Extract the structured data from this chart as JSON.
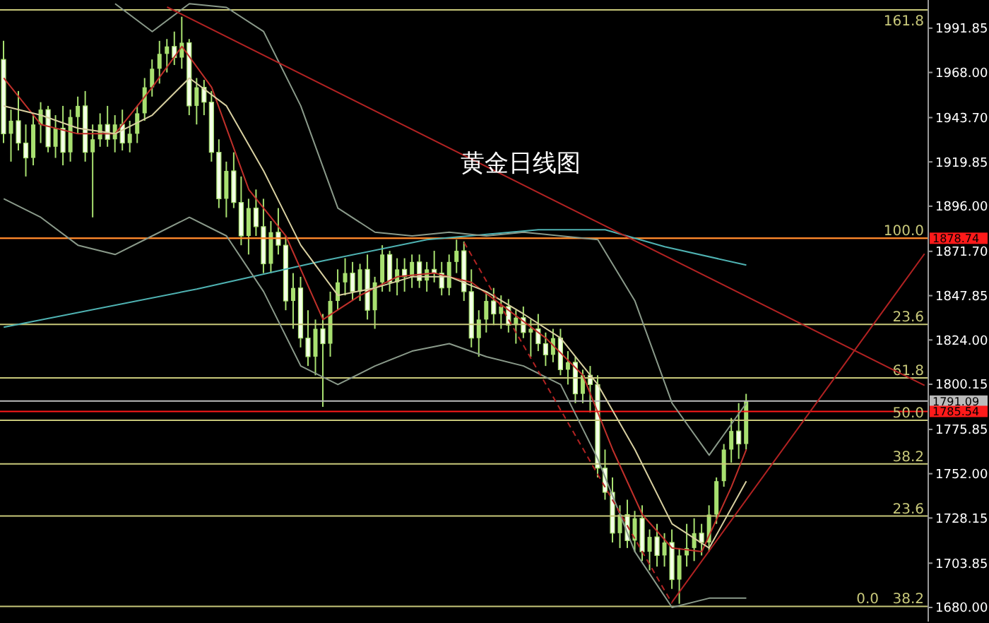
{
  "chart_data": {
    "type": "candlestick",
    "title": "黄金日线图",
    "color": "#a8e070",
    "categories": [
      null,
      null,
      null,
      null,
      null,
      null,
      null,
      null,
      null,
      null,
      null,
      null,
      null,
      null,
      null,
      null,
      null,
      null,
      null,
      null,
      null,
      null,
      null,
      null,
      null,
      null,
      null,
      null,
      null,
      null,
      null,
      null,
      null,
      null,
      null,
      null,
      null,
      null,
      null,
      null,
      null,
      null,
      null,
      null,
      null,
      null,
      null,
      null,
      null,
      null,
      null,
      null,
      null,
      null,
      null,
      null,
      null,
      null,
      null,
      null,
      null,
      null,
      null,
      null,
      null,
      null,
      null,
      null,
      null,
      null,
      null,
      null,
      null,
      null,
      null,
      null,
      null,
      null,
      null,
      null,
      null,
      null,
      null,
      null,
      null,
      null,
      null,
      null,
      null,
      null,
      null,
      null,
      null,
      null,
      null,
      null,
      null,
      null,
      null,
      null,
      null,
      null,
      null,
      null,
      null,
      null,
      null,
      null,
      null,
      null,
      null,
      null,
      null,
      null,
      null,
      null,
      null,
      null,
      null,
      null,
      null,
      null,
      null,
      null,
      null
    ],
    "ohlc": [
      [
        1975,
        1985,
        1930,
        1935
      ],
      [
        1935,
        1948,
        1920,
        1942
      ],
      [
        1942,
        1958,
        1926,
        1930
      ],
      [
        1930,
        1940,
        1912,
        1922
      ],
      [
        1922,
        1945,
        1918,
        1940
      ],
      [
        1940,
        1952,
        1930,
        1948
      ],
      [
        1948,
        1950,
        1925,
        1928
      ],
      [
        1928,
        1945,
        1922,
        1938
      ],
      [
        1938,
        1950,
        1918,
        1925
      ],
      [
        1925,
        1948,
        1920,
        1944
      ],
      [
        1944,
        1955,
        1935,
        1950
      ],
      [
        1950,
        1958,
        1920,
        1925
      ],
      [
        1925,
        1940,
        1890,
        1932
      ],
      [
        1932,
        1946,
        1928,
        1940
      ],
      [
        1940,
        1950,
        1928,
        1932
      ],
      [
        1932,
        1945,
        1925,
        1940
      ],
      [
        1940,
        1948,
        1926,
        1930
      ],
      [
        1930,
        1942,
        1925,
        1935
      ],
      [
        1935,
        1950,
        1930,
        1946
      ],
      [
        1946,
        1965,
        1942,
        1960
      ],
      [
        1960,
        1975,
        1955,
        1970
      ],
      [
        1970,
        1985,
        1962,
        1978
      ],
      [
        1978,
        1986,
        1968,
        1982
      ],
      [
        1982,
        1990,
        1972,
        1976
      ],
      [
        1976,
        1998,
        1970,
        1984
      ],
      [
        1984,
        1986,
        1945,
        1950
      ],
      [
        1950,
        1965,
        1940,
        1960
      ],
      [
        1960,
        1964,
        1945,
        1952
      ],
      [
        1952,
        1958,
        1920,
        1925
      ],
      [
        1925,
        1932,
        1895,
        1900
      ],
      [
        1900,
        1920,
        1890,
        1915
      ],
      [
        1915,
        1925,
        1895,
        1898
      ],
      [
        1898,
        1912,
        1875,
        1880
      ],
      [
        1880,
        1900,
        1870,
        1895
      ],
      [
        1895,
        1905,
        1880,
        1885
      ],
      [
        1885,
        1900,
        1860,
        1865
      ],
      [
        1865,
        1888,
        1860,
        1882
      ],
      [
        1882,
        1895,
        1870,
        1875
      ],
      [
        1875,
        1880,
        1840,
        1845
      ],
      [
        1845,
        1860,
        1830,
        1852
      ],
      [
        1852,
        1858,
        1820,
        1825
      ],
      [
        1825,
        1840,
        1810,
        1815
      ],
      [
        1815,
        1835,
        1805,
        1830
      ],
      [
        1830,
        1838,
        1788,
        1822
      ],
      [
        1822,
        1850,
        1815,
        1845
      ],
      [
        1845,
        1862,
        1840,
        1855
      ],
      [
        1855,
        1868,
        1848,
        1860
      ],
      [
        1860,
        1866,
        1845,
        1850
      ],
      [
        1850,
        1865,
        1845,
        1862
      ],
      [
        1862,
        1870,
        1835,
        1840
      ],
      [
        1840,
        1858,
        1830,
        1855
      ],
      [
        1855,
        1875,
        1850,
        1870
      ],
      [
        1870,
        1872,
        1850,
        1855
      ],
      [
        1855,
        1868,
        1848,
        1862
      ],
      [
        1862,
        1868,
        1850,
        1858
      ],
      [
        1858,
        1870,
        1852,
        1866
      ],
      [
        1866,
        1870,
        1852,
        1856
      ],
      [
        1856,
        1866,
        1850,
        1862
      ],
      [
        1862,
        1872,
        1855,
        1860
      ],
      [
        1860,
        1866,
        1848,
        1852
      ],
      [
        1852,
        1870,
        1848,
        1866
      ],
      [
        1866,
        1878,
        1860,
        1872
      ],
      [
        1872,
        1877,
        1845,
        1850
      ],
      [
        1850,
        1862,
        1820,
        1825
      ],
      [
        1825,
        1840,
        1815,
        1835
      ],
      [
        1835,
        1850,
        1828,
        1845
      ],
      [
        1845,
        1852,
        1832,
        1838
      ],
      [
        1838,
        1848,
        1830,
        1842
      ],
      [
        1842,
        1846,
        1828,
        1832
      ],
      [
        1832,
        1840,
        1822,
        1836
      ],
      [
        1836,
        1842,
        1825,
        1828
      ],
      [
        1828,
        1835,
        1815,
        1830
      ],
      [
        1830,
        1838,
        1818,
        1822
      ],
      [
        1822,
        1828,
        1810,
        1816
      ],
      [
        1816,
        1830,
        1812,
        1825
      ],
      [
        1825,
        1830,
        1805,
        1808
      ],
      [
        1808,
        1818,
        1800,
        1812
      ],
      [
        1812,
        1815,
        1790,
        1795
      ],
      [
        1795,
        1808,
        1790,
        1805
      ],
      [
        1805,
        1810,
        1785,
        1800
      ],
      [
        1800,
        1805,
        1750,
        1755
      ],
      [
        1755,
        1765,
        1738,
        1742
      ],
      [
        1742,
        1750,
        1715,
        1720
      ],
      [
        1720,
        1735,
        1712,
        1730
      ],
      [
        1730,
        1738,
        1712,
        1716
      ],
      [
        1716,
        1732,
        1710,
        1728
      ],
      [
        1728,
        1735,
        1705,
        1710
      ],
      [
        1710,
        1722,
        1700,
        1718
      ],
      [
        1718,
        1725,
        1702,
        1708
      ],
      [
        1708,
        1720,
        1702,
        1715
      ],
      [
        1715,
        1722,
        1690,
        1695
      ],
      [
        1695,
        1712,
        1682,
        1708
      ],
      [
        1708,
        1725,
        1702,
        1712
      ],
      [
        1712,
        1728,
        1705,
        1720
      ],
      [
        1720,
        1725,
        1708,
        1715
      ],
      [
        1715,
        1735,
        1710,
        1730
      ],
      [
        1730,
        1750,
        1725,
        1748
      ],
      [
        1748,
        1768,
        1745,
        1765
      ],
      [
        1765,
        1782,
        1758,
        1775
      ],
      [
        1775,
        1790,
        1760,
        1768
      ],
      [
        1768,
        1795,
        1765,
        1791
      ],
      null,
      null,
      null,
      null,
      null,
      null,
      null,
      null,
      null,
      null,
      null,
      null,
      null,
      null,
      null,
      null,
      null,
      null,
      null,
      null,
      null,
      null,
      null,
      null
    ],
    "series": [
      {
        "type": "line",
        "color": "#4fb3b3",
        "values": [
          1830.9,
          null,
          null,
          null,
          null,
          null,
          null,
          null,
          null,
          null,
          null,
          null,
          null,
          null,
          null,
          null,
          null,
          null,
          null,
          null,
          null,
          null,
          null,
          null,
          null,
          null,
          1851.4,
          null,
          null,
          null,
          null,
          null,
          null,
          null,
          null,
          null,
          null,
          null,
          null,
          null,
          null,
          null,
          null,
          1866.6,
          null,
          null,
          null,
          null,
          null,
          null,
          null,
          null,
          null,
          null,
          null,
          null,
          null,
          1878,
          null,
          null,
          null,
          null,
          null,
          null,
          null,
          null,
          null,
          null,
          null,
          null,
          null,
          null,
          1883.3,
          null,
          null,
          null,
          null,
          null,
          null,
          null,
          null,
          1883.3,
          null,
          null,
          null,
          null,
          null,
          null,
          null,
          1874.2,
          null,
          null,
          null,
          null,
          null,
          null,
          null,
          null,
          null,
          null,
          1864.3,
          null,
          null,
          null,
          null,
          null,
          null,
          null,
          null,
          null,
          null,
          null,
          null,
          null,
          null,
          null,
          null,
          null,
          null,
          null,
          null,
          null,
          null,
          null,
          null
        ]
      },
      {
        "type": "line",
        "color": "#c0302a",
        "values": [
          1965,
          null,
          null,
          null,
          null,
          1940,
          null,
          null,
          null,
          null,
          1935,
          null,
          null,
          null,
          null,
          1935,
          null,
          null,
          null,
          null,
          1960,
          null,
          null,
          null,
          1982,
          null,
          null,
          null,
          1960,
          null,
          null,
          null,
          null,
          1905,
          null,
          null,
          null,
          null,
          1880,
          null,
          null,
          null,
          null,
          1835,
          null,
          null,
          null,
          null,
          1848,
          null,
          null,
          null,
          null,
          1858,
          null,
          null,
          null,
          null,
          1860,
          null,
          null,
          null,
          null,
          1855,
          null,
          null,
          null,
          null,
          1840,
          null,
          null,
          null,
          null,
          1825,
          null,
          null,
          null,
          null,
          1805,
          null,
          null,
          null,
          1765,
          null,
          null,
          null,
          1730,
          null,
          null,
          null,
          1712,
          null,
          null,
          null,
          1710,
          null,
          null,
          null,
          1745,
          null,
          1765,
          null,
          null,
          null,
          null,
          null,
          null,
          null,
          null,
          null,
          null,
          null,
          null,
          null,
          null,
          null,
          null,
          null,
          null,
          null,
          null,
          null,
          null,
          null,
          null
        ]
      },
      {
        "type": "line",
        "color": "#d8d0a0",
        "values": [
          1950,
          null,
          null,
          null,
          null,
          1945,
          null,
          null,
          null,
          null,
          1938,
          null,
          null,
          null,
          null,
          1935,
          null,
          null,
          null,
          null,
          1945,
          null,
          null,
          null,
          null,
          1965,
          null,
          null,
          null,
          null,
          1950,
          null,
          null,
          null,
          null,
          1915,
          null,
          null,
          null,
          null,
          1875,
          null,
          null,
          null,
          null,
          1848,
          null,
          null,
          null,
          null,
          1852,
          null,
          null,
          null,
          null,
          1858,
          null,
          null,
          null,
          null,
          1858,
          null,
          null,
          null,
          null,
          1850,
          null,
          null,
          null,
          null,
          1838,
          null,
          null,
          null,
          null,
          1825,
          null,
          null,
          null,
          null,
          1800,
          null,
          null,
          null,
          null,
          1765,
          null,
          null,
          null,
          null,
          1725,
          null,
          null,
          null,
          null,
          1712,
          null,
          null,
          null,
          null,
          1748,
          null,
          null,
          null,
          null,
          null,
          null,
          null,
          null,
          null,
          null,
          null,
          null,
          null,
          null,
          null,
          null,
          null,
          null,
          null,
          null,
          null,
          null,
          null,
          null
        ]
      },
      {
        "type": "line",
        "color": "#8a9a8a",
        "values": [
          null,
          null,
          null,
          null,
          null,
          null,
          null,
          null,
          null,
          null,
          null,
          null,
          null,
          null,
          null,
          2005,
          null,
          null,
          null,
          null,
          1990,
          null,
          null,
          null,
          null,
          2005,
          null,
          null,
          null,
          null,
          2003,
          null,
          null,
          null,
          null,
          1990,
          null,
          null,
          null,
          null,
          1950,
          null,
          null,
          null,
          null,
          1895,
          null,
          null,
          null,
          null,
          1882,
          null,
          null,
          null,
          null,
          1880,
          null,
          null,
          null,
          null,
          1882,
          null,
          null,
          null,
          null,
          1880,
          null,
          null,
          null,
          null,
          1882,
          null,
          null,
          null,
          null,
          1880,
          null,
          null,
          null,
          null,
          1878,
          null,
          null,
          null,
          null,
          1845,
          null,
          null,
          null,
          null,
          1790,
          null,
          null,
          null,
          null,
          1762,
          null,
          null,
          null,
          null,
          1790,
          null,
          null,
          null,
          null,
          null,
          null,
          null,
          null,
          null,
          null,
          null,
          null,
          null,
          null,
          null,
          null,
          null,
          null,
          null,
          null,
          null,
          null,
          null,
          null
        ]
      },
      {
        "type": "line",
        "color": "#8a9a8a",
        "values": [
          1900,
          null,
          null,
          null,
          null,
          1890,
          null,
          null,
          null,
          null,
          1875,
          null,
          null,
          null,
          null,
          1870,
          null,
          null,
          null,
          null,
          1880,
          null,
          null,
          null,
          null,
          1890,
          null,
          null,
          null,
          null,
          1880,
          null,
          null,
          null,
          null,
          1850,
          null,
          null,
          null,
          null,
          1810,
          null,
          null,
          null,
          null,
          1800,
          null,
          null,
          null,
          null,
          1810,
          null,
          null,
          null,
          null,
          1818,
          null,
          null,
          null,
          null,
          1822,
          null,
          null,
          null,
          null,
          1815,
          null,
          null,
          null,
          null,
          1810,
          null,
          null,
          null,
          null,
          1800,
          null,
          null,
          null,
          null,
          1760,
          null,
          null,
          null,
          null,
          1710,
          null,
          null,
          null,
          null,
          1680,
          null,
          null,
          null,
          null,
          1685,
          null,
          null,
          null,
          null,
          1685,
          null,
          null,
          null,
          null,
          null,
          null,
          null,
          null,
          null,
          null,
          null,
          null,
          null,
          null,
          null,
          null,
          null,
          null,
          null,
          null,
          null,
          null,
          null,
          null
        ]
      },
      {
        "type": "line",
        "color": "#b22222",
        "values": [
          null,
          null,
          null,
          null,
          null,
          null,
          null,
          null,
          null,
          null,
          null,
          null,
          null,
          null,
          null,
          null,
          null,
          null,
          null,
          null,
          null,
          null,
          2003.2,
          null,
          null,
          null,
          null,
          null,
          null,
          null,
          null,
          null,
          null,
          null,
          null,
          null,
          null,
          null,
          null,
          null,
          null,
          null,
          null,
          null,
          null,
          null,
          null,
          null,
          null,
          null,
          null,
          null,
          null,
          null,
          null,
          null,
          null,
          null,
          null,
          null,
          null,
          null,
          null,
          null,
          null,
          null,
          null,
          null,
          null,
          null,
          null,
          null,
          null,
          null,
          null,
          null,
          null,
          null,
          null,
          null,
          null,
          null,
          null,
          null,
          null,
          null,
          null,
          null,
          null,
          null,
          null,
          null,
          null,
          null,
          null,
          null,
          null,
          null,
          null,
          null,
          null,
          null,
          null,
          null,
          null,
          null,
          null,
          null,
          null,
          null,
          null,
          null,
          null,
          null,
          null,
          null,
          null,
          null,
          null,
          null,
          null,
          null,
          null,
          null,
          1799.5
        ]
      },
      {
        "type": "line",
        "color": "#b22222",
        "values": [
          null,
          null,
          null,
          null,
          null,
          null,
          null,
          null,
          null,
          null,
          null,
          null,
          null,
          null,
          null,
          null,
          null,
          null,
          null,
          null,
          null,
          null,
          null,
          null,
          null,
          null,
          null,
          null,
          null,
          null,
          null,
          null,
          null,
          null,
          null,
          null,
          null,
          null,
          null,
          null,
          null,
          null,
          null,
          null,
          null,
          null,
          null,
          null,
          null,
          null,
          null,
          null,
          null,
          null,
          null,
          null,
          null,
          null,
          null,
          null,
          null,
          null,
          null,
          null,
          null,
          null,
          null,
          null,
          null,
          null,
          null,
          null,
          null,
          null,
          null,
          null,
          null,
          null,
          null,
          null,
          null,
          null,
          null,
          null,
          null,
          null,
          null,
          null,
          null,
          null,
          1682.9,
          null,
          null,
          null,
          null,
          null,
          null,
          null,
          null,
          null,
          null,
          null,
          null,
          null,
          null,
          null,
          null,
          null,
          null,
          null,
          null,
          null,
          null,
          null,
          null,
          null,
          null,
          null,
          null,
          null,
          null,
          null,
          null,
          null,
          1870.4
        ]
      },
      {
        "type": "line",
        "color": "#b22222",
        "line_style": "dashed",
        "values": [
          null,
          null,
          null,
          null,
          null,
          null,
          null,
          null,
          null,
          null,
          null,
          null,
          null,
          null,
          null,
          null,
          null,
          null,
          null,
          null,
          null,
          null,
          null,
          null,
          null,
          null,
          null,
          null,
          null,
          null,
          null,
          null,
          null,
          null,
          null,
          null,
          null,
          null,
          null,
          null,
          null,
          null,
          null,
          null,
          null,
          null,
          null,
          null,
          null,
          null,
          null,
          null,
          null,
          null,
          null,
          null,
          null,
          null,
          null,
          null,
          null,
          null,
          1876.5,
          null,
          null,
          null,
          null,
          null,
          null,
          null,
          null,
          null,
          null,
          null,
          null,
          null,
          null,
          null,
          null,
          null,
          null,
          null,
          null,
          null,
          null,
          null,
          null,
          null,
          null,
          null,
          1682.2,
          null,
          null,
          null,
          null,
          null,
          null,
          null,
          null,
          null,
          null,
          null,
          null,
          null,
          null,
          null,
          null,
          null,
          null,
          null,
          null,
          null,
          null,
          null,
          null,
          null,
          null,
          null,
          null,
          null,
          null,
          null,
          null,
          null,
          null
        ]
      }
    ],
    "ref_lines": [
      {
        "axis": "y",
        "value": 2001.7,
        "color": "#c8c87a"
      },
      {
        "axis": "y",
        "value": 1878.74,
        "label": "1878.74",
        "color": "#ff1a1a"
      },
      {
        "axis": "y",
        "value": 1878.74,
        "color": "#ff9a2e"
      },
      {
        "axis": "y",
        "value": 1832.4,
        "color": "#c8c87a"
      },
      {
        "axis": "y",
        "value": 1803.6,
        "color": "#c8c87a"
      },
      {
        "axis": "y",
        "value": 1791.09,
        "label": "1791.09",
        "color": "#bbbbbb"
      },
      {
        "axis": "y",
        "value": 1785.54,
        "label": "1785.54",
        "color": "#ff1a1a"
      },
      {
        "axis": "y",
        "value": 1780.8,
        "color": "#c8c87a"
      },
      {
        "axis": "y",
        "value": 1757.3,
        "color": "#c8c87a"
      },
      {
        "axis": "y",
        "value": 1729.2,
        "color": "#c8c87a"
      },
      {
        "axis": "y",
        "value": 1680.6,
        "color": "#c8c87a"
      }
    ],
    "annotations": [
      {
        "text": "161.8",
        "y": 2001.7
      },
      {
        "text": "100.0",
        "y": 1878.74
      },
      {
        "text": "23.6",
        "y": 1832.4
      },
      {
        "text": "61.8",
        "y": 1803.6
      },
      {
        "text": "50.0",
        "y": 1780.8
      },
      {
        "text": "38.2",
        "y": 1757.3
      },
      {
        "text": "23.6",
        "y": 1729.2
      },
      {
        "text": "38.2",
        "y": 1680.6
      },
      {
        "text": "0.0",
        "y": 1680.6
      }
    ],
    "ylim": [
      1672.4,
      2007
    ],
    "yticks": [
      {
        "value": 1680,
        "label": "1680.00"
      },
      {
        "value": 1703.85,
        "label": "1703.85"
      },
      {
        "value": 1728.15,
        "label": "1728.15"
      },
      {
        "value": 1752,
        "label": "1752.00"
      },
      {
        "value": 1775.85,
        "label": "1775.85"
      },
      {
        "value": 1800.15,
        "label": "1800.15"
      },
      {
        "value": 1824,
        "label": "1824.00"
      },
      {
        "value": 1847.85,
        "label": "1847.85"
      },
      {
        "value": 1871.7,
        "label": "1871.70"
      },
      {
        "value": 1896,
        "label": "1896.00"
      },
      {
        "value": 1919.85,
        "label": "1919.85"
      },
      {
        "value": 1943.7,
        "label": "1943.70"
      },
      {
        "value": 1968,
        "label": "1968.00"
      },
      {
        "value": 1991.85,
        "label": "1991.85"
      }
    ],
    "tick_labels": "y"
  }
}
